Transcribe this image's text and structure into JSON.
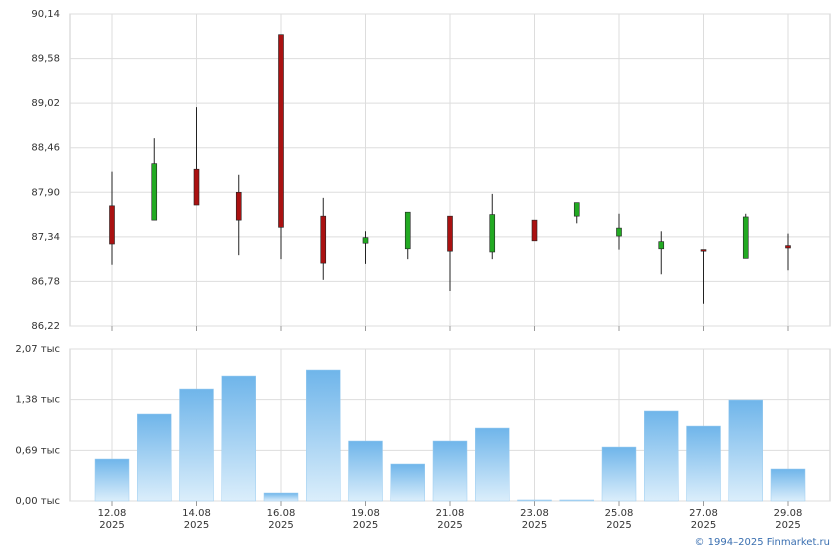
{
  "chart_data": [
    {
      "type": "candlestick",
      "open": [
        87.73,
        87.55,
        88.19,
        87.9,
        89.88,
        87.6,
        87.26,
        87.19,
        87.6,
        87.15,
        87.55,
        87.6,
        87.35,
        87.19,
        87.18,
        87.07,
        87.23
      ],
      "high": [
        88.16,
        88.58,
        88.97,
        88.12,
        89.88,
        87.83,
        87.41,
        87.65,
        87.6,
        87.88,
        87.55,
        87.77,
        87.63,
        87.41,
        87.18,
        87.63,
        87.38
      ],
      "low": [
        86.99,
        87.55,
        87.74,
        87.11,
        87.06,
        86.8,
        87.0,
        87.06,
        86.66,
        87.06,
        87.29,
        87.51,
        87.18,
        86.87,
        86.5,
        87.07,
        86.92
      ],
      "close": [
        87.25,
        88.26,
        87.74,
        87.55,
        87.46,
        87.01,
        87.33,
        87.65,
        87.16,
        87.62,
        87.29,
        87.77,
        87.45,
        87.28,
        87.16,
        87.59,
        87.2
      ],
      "up_color": "#22aa22",
      "down_color": "#aa1111",
      "ylim": [
        86.22,
        90.14
      ],
      "yticks": [
        {
          "value": 86.22,
          "label": "86,22"
        },
        {
          "value": 86.78,
          "label": "86,78"
        },
        {
          "value": 87.34,
          "label": "87,34"
        },
        {
          "value": 87.9,
          "label": "87,90"
        },
        {
          "value": 88.46,
          "label": "88,46"
        },
        {
          "value": 89.02,
          "label": "89,02"
        },
        {
          "value": 89.58,
          "label": "89,58"
        },
        {
          "value": 90.14,
          "label": "90,14"
        }
      ],
      "grid": true
    },
    {
      "type": "bar",
      "categories": [
        "12.08\n2025",
        null,
        "14.08\n2025",
        null,
        "16.08\n2025",
        null,
        "19.08\n2025",
        null,
        "21.08\n2025",
        null,
        "23.08\n2025",
        null,
        "25.08\n2025",
        null,
        "27.08\n2025",
        null,
        "29.08\n2025"
      ],
      "values": [
        0.572,
        1.185,
        1.525,
        1.702,
        0.109,
        1.784,
        0.817,
        0.504,
        0.817,
        0.994,
        0.014,
        0.014,
        0.735,
        1.226,
        1.021,
        1.375,
        0.436
      ],
      "color": "#6fb5ea",
      "ylim": [
        0,
        2.07
      ],
      "yticks": [
        {
          "value": 0,
          "label": "0,00 тыс"
        },
        {
          "value": 0.69,
          "label": "0,69 тыс"
        },
        {
          "value": 1.38,
          "label": "1,38 тыс"
        },
        {
          "value": 2.07,
          "label": "2,07 тыс"
        }
      ],
      "grid": true
    }
  ],
  "footer": "© 1994–2025 Finmarket.ru"
}
